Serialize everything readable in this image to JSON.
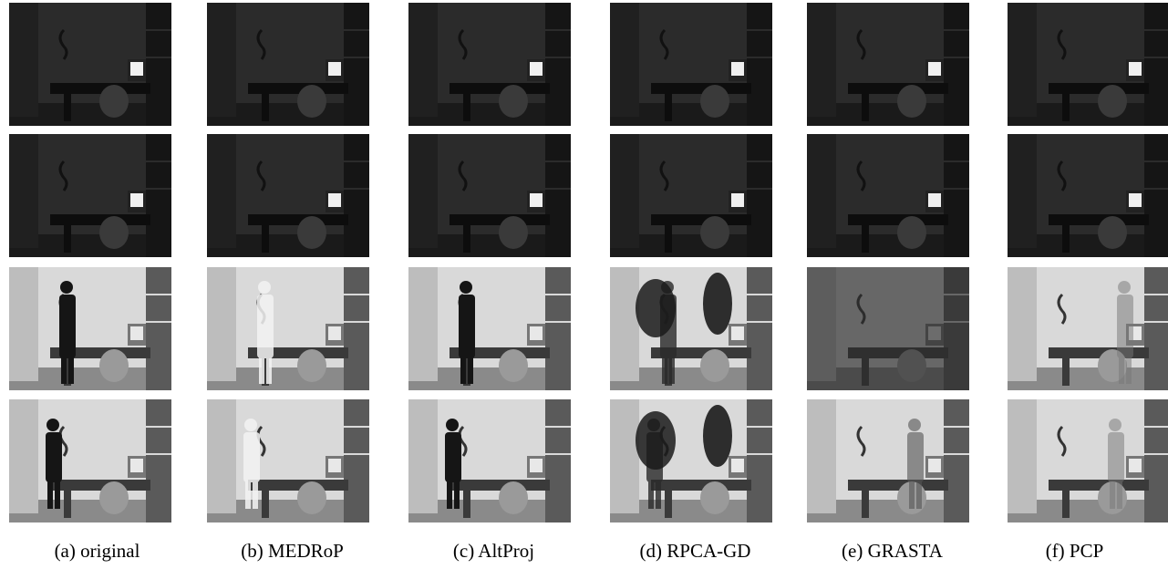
{
  "figure": {
    "columns": [
      {
        "id": "a",
        "caption": "(a) original"
      },
      {
        "id": "b",
        "caption": "(b) MEDRoP"
      },
      {
        "id": "c",
        "caption": "(c) AltProj"
      },
      {
        "id": "d",
        "caption": "(d) RPCA-GD"
      },
      {
        "id": "e",
        "caption": "(e) GRASTA"
      },
      {
        "id": "f",
        "caption": "(f) PCP"
      }
    ],
    "rows": [
      {
        "lighting": "dark"
      },
      {
        "lighting": "dark"
      },
      {
        "lighting": "bright",
        "person": "standing"
      },
      {
        "lighting": "bright",
        "person": "bending"
      }
    ]
  }
}
